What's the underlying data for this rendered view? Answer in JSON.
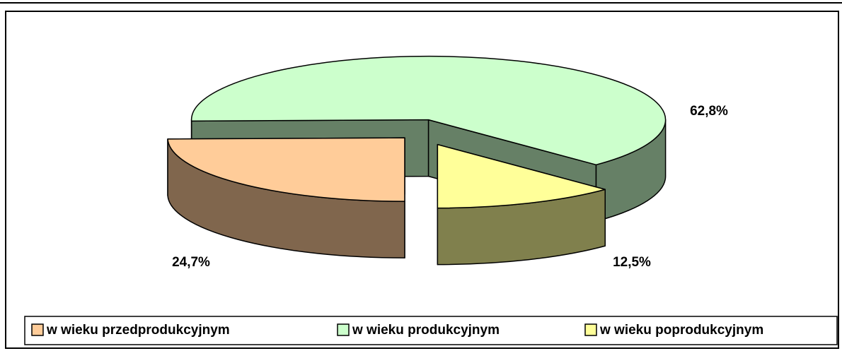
{
  "chart_data": {
    "type": "pie",
    "categories": [
      "w wieku przedprodukcyjnym",
      "w wieku produkcyjnym",
      "w wieku poprodukcyjnym"
    ],
    "values": [
      24.7,
      62.8,
      12.5
    ],
    "value_labels": [
      "24,7%",
      "62,8%",
      "12,5%"
    ],
    "colors": [
      "#ffcc99",
      "#ccffcc",
      "#ffff99"
    ],
    "legend": "bottom"
  }
}
